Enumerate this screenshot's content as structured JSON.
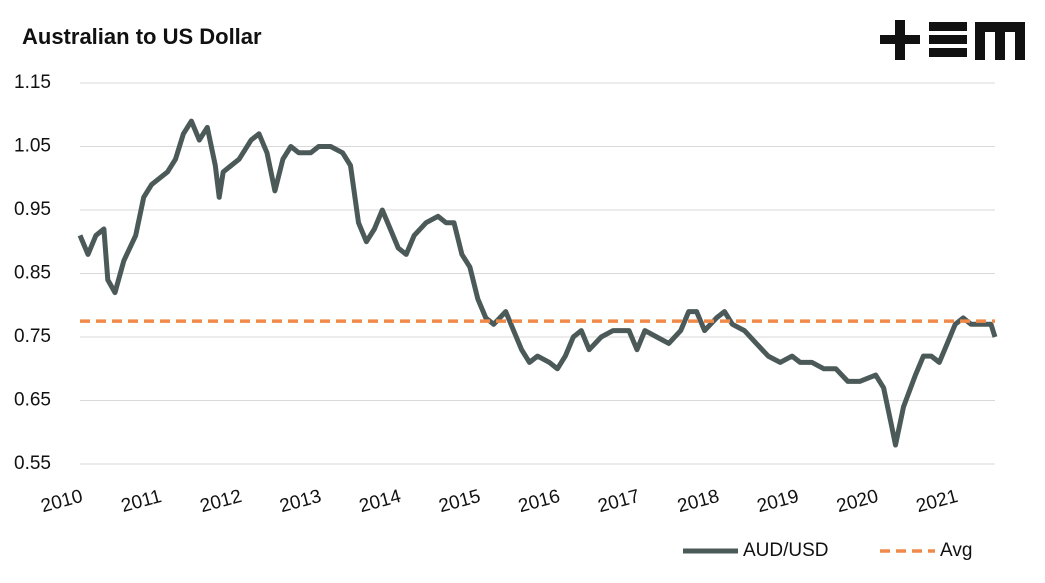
{
  "chart_data": {
    "type": "line",
    "title": "Australian to US Dollar",
    "series": [
      {
        "name": "AUD/USD",
        "color": "#4b5a58",
        "x": [
          2010.0,
          2010.1,
          2010.2,
          2010.3,
          2010.35,
          2010.44,
          2010.55,
          2010.7,
          2010.8,
          2010.9,
          2011.0,
          2011.1,
          2011.2,
          2011.3,
          2011.4,
          2011.5,
          2011.6,
          2011.7,
          2011.75,
          2011.8,
          2011.9,
          2012.0,
          2012.15,
          2012.25,
          2012.35,
          2012.45,
          2012.55,
          2012.65,
          2012.75,
          2012.9,
          2013.0,
          2013.15,
          2013.3,
          2013.4,
          2013.5,
          2013.6,
          2013.7,
          2013.8,
          2013.9,
          2014.0,
          2014.1,
          2014.2,
          2014.35,
          2014.5,
          2014.6,
          2014.7,
          2014.8,
          2014.9,
          2015.0,
          2015.1,
          2015.2,
          2015.35,
          2015.45,
          2015.55,
          2015.65,
          2015.75,
          2015.9,
          2016.0,
          2016.1,
          2016.2,
          2016.3,
          2016.4,
          2016.55,
          2016.7,
          2016.9,
          2017.0,
          2017.1,
          2017.25,
          2017.4,
          2017.55,
          2017.65,
          2017.75,
          2017.85,
          2018.0,
          2018.1,
          2018.2,
          2018.35,
          2018.5,
          2018.65,
          2018.8,
          2018.95,
          2019.05,
          2019.2,
          2019.35,
          2019.5,
          2019.65,
          2019.8,
          2020.0,
          2020.1,
          2020.2,
          2020.25,
          2020.35,
          2020.5,
          2020.6,
          2020.7,
          2020.8,
          2020.9,
          2021.0,
          2021.1,
          2021.2,
          2021.35,
          2021.45,
          2021.5
        ],
        "values": [
          0.91,
          0.88,
          0.91,
          0.92,
          0.84,
          0.82,
          0.87,
          0.91,
          0.97,
          0.99,
          1.0,
          1.01,
          1.03,
          1.07,
          1.09,
          1.06,
          1.08,
          1.02,
          0.97,
          1.01,
          1.02,
          1.03,
          1.06,
          1.07,
          1.04,
          0.98,
          1.03,
          1.05,
          1.04,
          1.04,
          1.05,
          1.05,
          1.04,
          1.02,
          0.93,
          0.9,
          0.92,
          0.95,
          0.92,
          0.89,
          0.88,
          0.91,
          0.93,
          0.94,
          0.93,
          0.93,
          0.88,
          0.86,
          0.81,
          0.78,
          0.77,
          0.79,
          0.76,
          0.73,
          0.71,
          0.72,
          0.71,
          0.7,
          0.72,
          0.75,
          0.76,
          0.73,
          0.75,
          0.76,
          0.76,
          0.73,
          0.76,
          0.75,
          0.74,
          0.76,
          0.79,
          0.79,
          0.76,
          0.78,
          0.79,
          0.77,
          0.76,
          0.74,
          0.72,
          0.71,
          0.72,
          0.71,
          0.71,
          0.7,
          0.7,
          0.68,
          0.68,
          0.69,
          0.67,
          0.61,
          0.58,
          0.64,
          0.69,
          0.72,
          0.72,
          0.71,
          0.74,
          0.77,
          0.78,
          0.77,
          0.77,
          0.77,
          0.75
        ]
      },
      {
        "name": "Avg",
        "color": "#f08a4b",
        "dashed": true,
        "x": [
          2010.0,
          2021.5
        ],
        "values": [
          0.775,
          0.775
        ]
      }
    ],
    "xlim": [
      2010,
      2021.5
    ],
    "xticks": [
      2010,
      2011,
      2012,
      2013,
      2014,
      2015,
      2016,
      2017,
      2018,
      2019,
      2020,
      2021
    ],
    "ylim": [
      0.55,
      1.15
    ],
    "yticks": [
      0.55,
      0.65,
      0.75,
      0.85,
      0.95,
      1.05,
      1.15
    ],
    "grid": true,
    "legend": "bottom-right"
  }
}
